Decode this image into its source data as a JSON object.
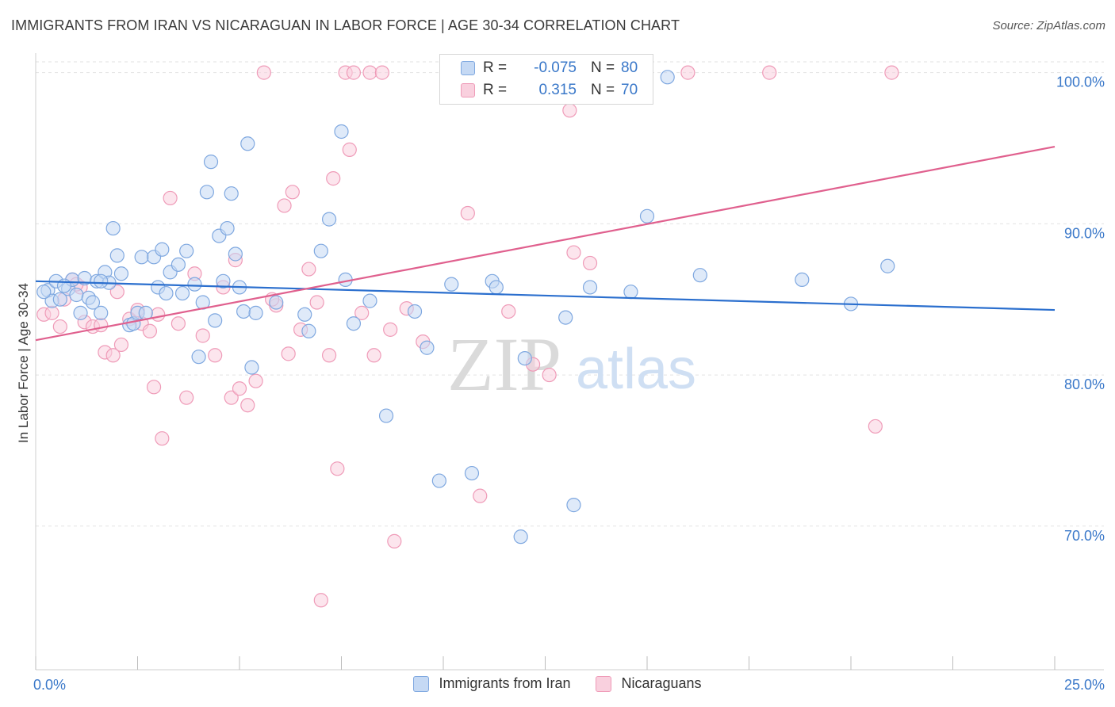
{
  "title": "IMMIGRANTS FROM IRAN VS NICARAGUAN IN LABOR FORCE | AGE 30-34 CORRELATION CHART",
  "source": "Source: ZipAtlas.com",
  "watermark": {
    "zip": "ZIP",
    "atlas": "atlas"
  },
  "legend": {
    "rows": [
      {
        "r_label": "R =",
        "r_value": "-0.075",
        "n_label": "N =",
        "n_value": "80"
      },
      {
        "r_label": "R =",
        "r_value": "0.315",
        "n_label": "N =",
        "n_value": "70"
      }
    ]
  },
  "chart_data": {
    "type": "scatter",
    "title": "IMMIGRANTS FROM IRAN VS NICARAGUAN IN LABOR FORCE | AGE 30-34 CORRELATION CHART",
    "xlabel": "",
    "ylabel": "In Labor Force | Age 30-34",
    "xlim": [
      0,
      25
    ],
    "ylim": [
      60.5,
      101.5
    ],
    "x_tick_labels": [
      "0.0%",
      "25.0%"
    ],
    "y_ticks": [
      70,
      80,
      90,
      100
    ],
    "y_tick_labels": [
      "70.0%",
      "80.0%",
      "90.0%",
      "100.0%"
    ],
    "grid": true,
    "legend_position": "top-center",
    "colors": {
      "iran": "#7fa8e0",
      "iran_fill": "#c5d9f4",
      "nic": "#ef9bb8",
      "nic_fill": "#f9d0de",
      "iran_line": "#2b6fce",
      "nic_line": "#e0608e",
      "tick_label": "#3a78c9"
    },
    "series": [
      {
        "name": "Immigrants from Iran",
        "trend": [
          [
            0,
            86.2
          ],
          [
            25,
            84.3
          ]
        ],
        "points": [
          [
            0.3,
            85.6
          ],
          [
            0.4,
            84.9
          ],
          [
            0.5,
            86.2
          ],
          [
            0.6,
            85.0
          ],
          [
            0.8,
            85.7
          ],
          [
            0.9,
            86.3
          ],
          [
            1.0,
            85.3
          ],
          [
            1.1,
            84.1
          ],
          [
            1.2,
            86.4
          ],
          [
            1.3,
            85.1
          ],
          [
            1.4,
            84.8
          ],
          [
            1.5,
            86.2
          ],
          [
            1.6,
            84.1
          ],
          [
            1.7,
            86.8
          ],
          [
            1.8,
            86.1
          ],
          [
            1.9,
            89.7
          ],
          [
            2.0,
            87.9
          ],
          [
            2.1,
            86.7
          ],
          [
            2.3,
            83.3
          ],
          [
            2.4,
            83.4
          ],
          [
            2.5,
            84.1
          ],
          [
            2.6,
            87.8
          ],
          [
            2.7,
            84.1
          ],
          [
            2.9,
            87.8
          ],
          [
            3.0,
            85.8
          ],
          [
            3.1,
            88.3
          ],
          [
            3.2,
            85.4
          ],
          [
            3.3,
            86.8
          ],
          [
            3.5,
            87.3
          ],
          [
            3.6,
            85.4
          ],
          [
            3.7,
            88.2
          ],
          [
            3.9,
            86.0
          ],
          [
            4.0,
            81.2
          ],
          [
            4.1,
            84.8
          ],
          [
            4.2,
            92.1
          ],
          [
            4.3,
            94.1
          ],
          [
            4.4,
            83.6
          ],
          [
            4.5,
            89.2
          ],
          [
            4.6,
            86.2
          ],
          [
            4.7,
            89.7
          ],
          [
            4.8,
            92.0
          ],
          [
            4.9,
            88.0
          ],
          [
            5.0,
            85.8
          ],
          [
            5.1,
            84.2
          ],
          [
            5.2,
            95.3
          ],
          [
            5.3,
            80.5
          ],
          [
            5.4,
            84.1
          ],
          [
            5.9,
            84.8
          ],
          [
            6.6,
            84.0
          ],
          [
            6.7,
            82.9
          ],
          [
            7.0,
            88.2
          ],
          [
            7.2,
            90.3
          ],
          [
            7.5,
            96.1
          ],
          [
            7.6,
            86.3
          ],
          [
            7.8,
            83.4
          ],
          [
            8.2,
            84.9
          ],
          [
            8.6,
            77.3
          ],
          [
            9.3,
            84.2
          ],
          [
            9.6,
            81.8
          ],
          [
            9.9,
            73.0
          ],
          [
            10.2,
            86.0
          ],
          [
            10.7,
            73.5
          ],
          [
            11.0,
            99.3
          ],
          [
            11.2,
            86.2
          ],
          [
            11.3,
            85.8
          ],
          [
            11.9,
            69.3
          ],
          [
            12.0,
            81.1
          ],
          [
            13.0,
            83.8
          ],
          [
            13.2,
            71.4
          ],
          [
            13.6,
            85.8
          ],
          [
            14.6,
            85.5
          ],
          [
            15.0,
            90.5
          ],
          [
            15.5,
            99.7
          ],
          [
            16.3,
            86.6
          ],
          [
            18.8,
            86.3
          ],
          [
            20.0,
            84.7
          ],
          [
            20.9,
            87.2
          ],
          [
            0.2,
            85.5
          ],
          [
            0.7,
            85.9
          ],
          [
            1.6,
            86.2
          ]
        ]
      },
      {
        "name": "Nicaraguans",
        "trend": [
          [
            0,
            82.3
          ],
          [
            25,
            95.1
          ]
        ],
        "points": [
          [
            0.2,
            84.0
          ],
          [
            0.4,
            84.1
          ],
          [
            0.6,
            83.2
          ],
          [
            0.7,
            85.0
          ],
          [
            0.9,
            86.3
          ],
          [
            1.1,
            85.8
          ],
          [
            1.2,
            83.5
          ],
          [
            1.4,
            83.2
          ],
          [
            1.6,
            83.3
          ],
          [
            1.7,
            81.5
          ],
          [
            1.9,
            81.3
          ],
          [
            2.0,
            85.5
          ],
          [
            2.1,
            82.0
          ],
          [
            2.3,
            83.7
          ],
          [
            2.5,
            84.3
          ],
          [
            2.6,
            83.4
          ],
          [
            2.8,
            82.9
          ],
          [
            2.9,
            79.2
          ],
          [
            3.1,
            75.8
          ],
          [
            3.3,
            91.7
          ],
          [
            3.5,
            83.4
          ],
          [
            3.7,
            78.5
          ],
          [
            3.9,
            86.7
          ],
          [
            4.1,
            82.6
          ],
          [
            4.4,
            81.3
          ],
          [
            4.6,
            85.8
          ],
          [
            4.8,
            78.5
          ],
          [
            4.9,
            87.6
          ],
          [
            5.0,
            79.1
          ],
          [
            5.2,
            78.0
          ],
          [
            5.4,
            79.6
          ],
          [
            5.6,
            100.0
          ],
          [
            5.9,
            84.6
          ],
          [
            6.1,
            91.2
          ],
          [
            6.2,
            81.4
          ],
          [
            6.3,
            92.1
          ],
          [
            6.5,
            83.0
          ],
          [
            6.7,
            87.0
          ],
          [
            6.9,
            84.8
          ],
          [
            7.2,
            81.3
          ],
          [
            7.3,
            93.0
          ],
          [
            7.4,
            73.8
          ],
          [
            7.6,
            100.0
          ],
          [
            7.7,
            94.9
          ],
          [
            7.8,
            100.0
          ],
          [
            8.0,
            84.1
          ],
          [
            8.2,
            100.0
          ],
          [
            8.3,
            81.3
          ],
          [
            8.5,
            100.0
          ],
          [
            8.7,
            83.0
          ],
          [
            8.8,
            69.0
          ],
          [
            9.1,
            84.4
          ],
          [
            9.5,
            82.2
          ],
          [
            10.3,
            99.1
          ],
          [
            10.6,
            90.7
          ],
          [
            10.9,
            72.0
          ],
          [
            11.6,
            84.2
          ],
          [
            12.2,
            80.7
          ],
          [
            12.6,
            80.0
          ],
          [
            13.1,
            97.5
          ],
          [
            13.2,
            88.1
          ],
          [
            13.6,
            87.4
          ],
          [
            16.0,
            100.0
          ],
          [
            18.0,
            100.0
          ],
          [
            20.6,
            76.6
          ],
          [
            21.0,
            100.0
          ],
          [
            7.0,
            65.1
          ],
          [
            1.0,
            86.0
          ],
          [
            5.8,
            85.0
          ],
          [
            3.0,
            84.0
          ]
        ]
      }
    ]
  }
}
